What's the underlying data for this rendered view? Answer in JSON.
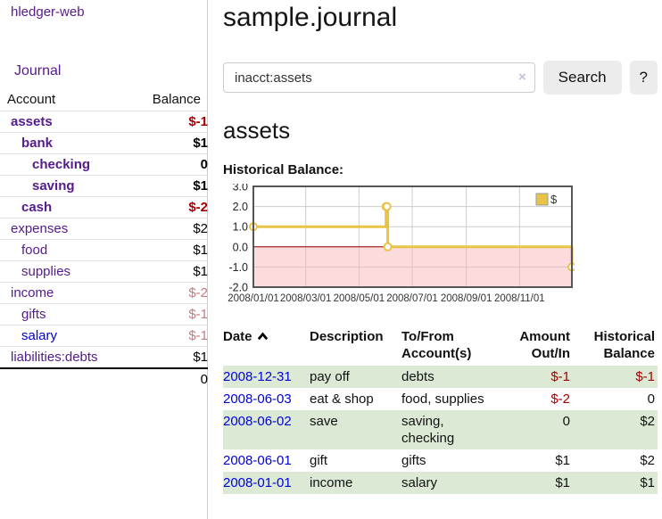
{
  "sidebar": {
    "brand": "hledger-web",
    "nav": {
      "journal": "Journal"
    },
    "accounts_table": {
      "headers": {
        "account": "Account",
        "balance": "Balance"
      },
      "rows": [
        {
          "name": "assets",
          "level": 1,
          "emphasis": true,
          "balance": "$-1",
          "negative": "strong"
        },
        {
          "name": "bank",
          "level": 2,
          "emphasis": true,
          "balance": "$1",
          "negative": "none"
        },
        {
          "name": "checking",
          "level": 3,
          "emphasis": true,
          "balance": "0",
          "negative": "none"
        },
        {
          "name": "saving",
          "level": 3,
          "emphasis": true,
          "balance": "$1",
          "negative": "none"
        },
        {
          "name": "cash",
          "level": 2,
          "emphasis": true,
          "balance": "$-2",
          "negative": "strong"
        },
        {
          "name": "expenses",
          "level": 1,
          "emphasis": false,
          "balance": "$2",
          "negative": "none"
        },
        {
          "name": "food",
          "level": 2,
          "emphasis": false,
          "balance": "$1",
          "negative": "none"
        },
        {
          "name": "supplies",
          "level": 2,
          "emphasis": false,
          "balance": "$1",
          "negative": "none"
        },
        {
          "name": "income",
          "level": 1,
          "emphasis": false,
          "balance": "$-2",
          "negative": "soft"
        },
        {
          "name": "gifts",
          "level": 2,
          "emphasis": false,
          "balance": "$-1",
          "negative": "soft"
        },
        {
          "name": "salary",
          "level": 2,
          "emphasis": false,
          "balance": "$-1",
          "negative": "soft",
          "link_style": "unvisited"
        },
        {
          "name": "liabilities:debts",
          "level": 1,
          "emphasis": false,
          "balance": "$1",
          "negative": "none"
        }
      ],
      "total": "0"
    }
  },
  "main": {
    "title": "sample.journal",
    "search": {
      "value": "inacct:assets",
      "clear_icon": "×",
      "button": "Search",
      "help_button": "?"
    },
    "account_heading": "assets",
    "chart_heading": "Historical Balance:"
  },
  "chart_data": {
    "type": "line",
    "step": true,
    "title": "Historical Balance",
    "series": [
      {
        "name": "$",
        "color": "#e9c347",
        "points": [
          [
            "2008-01-01",
            1
          ],
          [
            "2008-06-01",
            2
          ],
          [
            "2008-06-02",
            2
          ],
          [
            "2008-06-03",
            0
          ],
          [
            "2008-12-31",
            -1
          ]
        ]
      }
    ],
    "x_range": [
      "2008-01-01",
      "2008-12-31"
    ],
    "x_ticks": [
      "2008/01/01",
      "2008/03/01",
      "2008/05/01",
      "2008/07/01",
      "2008/09/01",
      "2008/11/01"
    ],
    "y_ticks": [
      "3.0",
      "2.0",
      "1.0",
      "0.0",
      "-1.0",
      "-2.0"
    ],
    "ylim": [
      -2,
      3
    ],
    "grid": true,
    "legend": {
      "label": "$",
      "position": "top-right"
    },
    "negative_region_color": "#f7afaf",
    "zero_line_color": "#990000"
  },
  "register_table": {
    "headers": {
      "date": "Date",
      "description": "Description",
      "tofrom": "To/From Account(s)",
      "amount": "Amount Out/In",
      "balance": "Historical Balance"
    },
    "sort": {
      "column": "date",
      "direction": "ascending"
    },
    "rows": [
      {
        "date": "2008-12-31",
        "description": "pay off",
        "accounts": [
          "debts"
        ],
        "amount": "$-1",
        "amount_negative": true,
        "balance": "$-1",
        "balance_negative": true
      },
      {
        "date": "2008-06-03",
        "description": "eat & shop",
        "accounts": [
          "food, supplies"
        ],
        "amount": "$-2",
        "amount_negative": true,
        "balance": "0",
        "balance_negative": false
      },
      {
        "date": "2008-06-02",
        "description": "save",
        "accounts": [
          "saving,",
          "checking"
        ],
        "amount": "0",
        "amount_negative": false,
        "balance": "$2",
        "balance_negative": false
      },
      {
        "date": "2008-06-01",
        "description": "gift",
        "accounts": [
          "gifts"
        ],
        "amount": "$1",
        "amount_negative": false,
        "balance": "$2",
        "balance_negative": false
      },
      {
        "date": "2008-01-01",
        "description": "income",
        "accounts": [
          "salary"
        ],
        "amount": "$1",
        "amount_negative": false,
        "balance": "$1",
        "balance_negative": false
      }
    ]
  },
  "colors": {
    "visited_link_purple": "#551a8b",
    "unvisited_link_blue": "#0000dd",
    "negative_strong_red": "#a40000",
    "negative_soft_red": "#c17d7f",
    "row_green": "#dcead5",
    "chart_gold": "#e9c347",
    "chart_negative_pink": "#f7afaf",
    "zero_line_red": "#990000"
  }
}
